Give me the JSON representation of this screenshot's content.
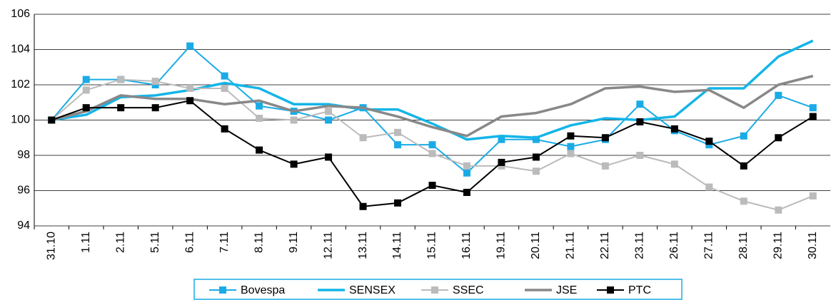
{
  "chart_data": {
    "type": "line",
    "categories": [
      "31.10",
      "1.11",
      "2.11",
      "5.11",
      "6.11",
      "7.11",
      "8.11",
      "9.11",
      "12.11",
      "13.11",
      "14.11",
      "15.11",
      "16.11",
      "19.11",
      "20.11",
      "21.11",
      "22.11",
      "23.11",
      "26.11",
      "27.11",
      "28.11",
      "29.11",
      "30.11"
    ],
    "series": [
      {
        "name": "Bovespa",
        "color": "#1aabe6",
        "marker": "square",
        "values": [
          100,
          102.3,
          102.3,
          102.0,
          104.2,
          102.5,
          100.8,
          100.5,
          100.0,
          100.7,
          98.6,
          98.6,
          97.0,
          98.9,
          98.9,
          98.5,
          98.9,
          100.9,
          99.4,
          98.6,
          99.1,
          101.4,
          100.7
        ]
      },
      {
        "name": "SENSEX",
        "color": "#14b5e8",
        "marker": "none",
        "values": [
          100,
          100.3,
          101.3,
          101.4,
          101.7,
          102.1,
          101.8,
          100.9,
          100.9,
          100.6,
          100.6,
          99.8,
          98.9,
          99.1,
          99.0,
          99.7,
          100.1,
          100.0,
          100.2,
          101.8,
          101.8,
          103.6,
          104.5
        ]
      },
      {
        "name": "SSEC",
        "color": "#bbbbbb",
        "marker": "square",
        "values": [
          100,
          101.7,
          102.3,
          102.2,
          101.8,
          101.8,
          100.1,
          100.0,
          100.5,
          99.0,
          99.3,
          98.1,
          97.4,
          97.4,
          97.1,
          98.1,
          97.4,
          98.0,
          97.5,
          96.2,
          95.4,
          94.9,
          95.7
        ]
      },
      {
        "name": "JSE",
        "color": "#888888",
        "marker": "none",
        "values": [
          100,
          100.5,
          101.4,
          101.2,
          101.2,
          100.9,
          101.1,
          100.5,
          100.8,
          100.7,
          100.2,
          99.6,
          99.1,
          100.2,
          100.4,
          100.9,
          101.8,
          101.9,
          101.6,
          101.7,
          100.7,
          102.0,
          102.5
        ]
      },
      {
        "name": "PTC",
        "color": "#000000",
        "marker": "square",
        "values": [
          100,
          100.7,
          100.7,
          100.7,
          101.1,
          99.5,
          98.3,
          97.5,
          97.9,
          95.1,
          95.3,
          96.3,
          95.9,
          97.6,
          97.9,
          99.1,
          99.0,
          99.9,
          99.5,
          98.8,
          97.4,
          99.0,
          100.2
        ]
      }
    ],
    "ylim": [
      94,
      106
    ],
    "yticks": [
      94,
      96,
      98,
      100,
      102,
      104,
      106
    ],
    "grid": true,
    "legend": "bottom"
  }
}
